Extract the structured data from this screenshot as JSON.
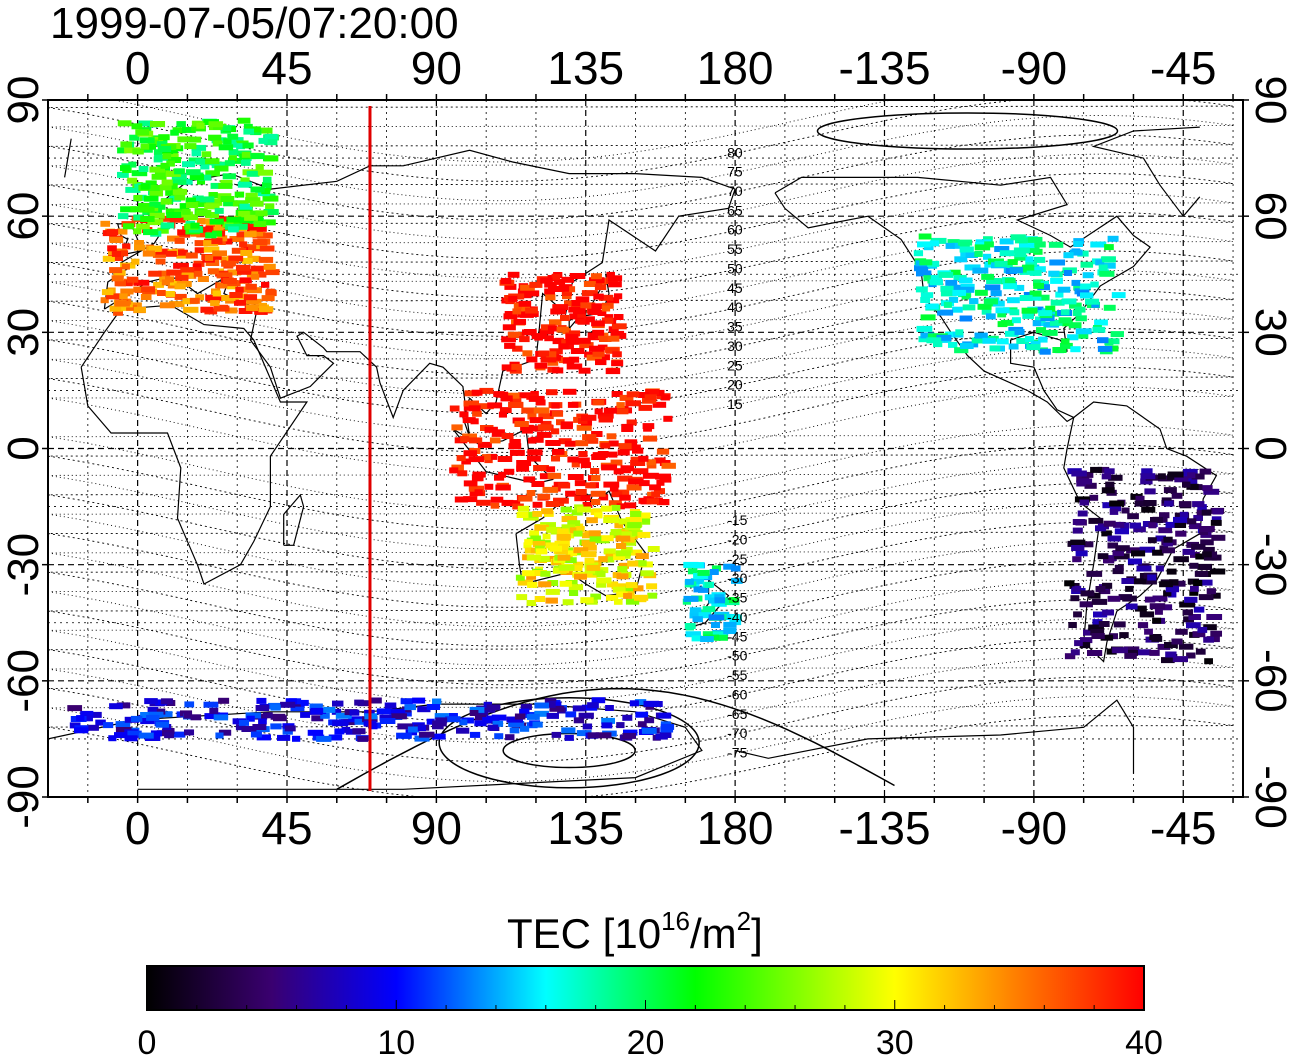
{
  "header": {
    "timestamp": "1999-07-05/07:20:00"
  },
  "map": {
    "top_axis_labels": [
      "0",
      "45",
      "90",
      "135",
      "180",
      "-135",
      "-90",
      "-45"
    ],
    "bottom_axis_labels": [
      "0",
      "45",
      "90",
      "135",
      "180",
      "-135",
      "-90",
      "-45"
    ],
    "left_axis_labels": [
      "90",
      "60",
      "30",
      "0",
      "-30",
      "-60",
      "-90"
    ],
    "right_axis_labels": [
      "90",
      "60",
      "30",
      "0",
      "-30",
      "-60",
      "-90"
    ],
    "contour_labels": [
      "80",
      "75",
      "70",
      "65",
      "60",
      "55",
      "50",
      "45",
      "40",
      "35",
      "30",
      "25",
      "20",
      "15",
      "-15",
      "-20",
      "-25",
      "-30",
      "-35",
      "-40",
      "-45",
      "-50",
      "-55",
      "-60",
      "-65",
      "-70",
      "-75"
    ],
    "marker_longitude": 70,
    "marker_color": "#e00000"
  },
  "colorbar": {
    "title_prefix": "TEC  [10",
    "title_sup1": "16",
    "title_mid": "/m",
    "title_sup2": "2",
    "title_suffix": "]",
    "tick_labels": [
      "0",
      "10",
      "20",
      "30",
      "40"
    ],
    "min": 0,
    "max": 40,
    "colors": [
      "#000000",
      "#3a0070",
      "#0000ff",
      "#00ffff",
      "#00ff00",
      "#ffff00",
      "#ff8000",
      "#ff0000"
    ]
  },
  "chart_data": {
    "type": "heatmap",
    "title": "1999-07-05/07:20:00",
    "colorbar_label": "TEC [10^16/m^2]",
    "crange": [
      0,
      40
    ],
    "regions": [
      {
        "lon": [
          -10,
          40
        ],
        "lat": [
          35,
          60
        ],
        "tec": 36
      },
      {
        "lon": [
          -5,
          40
        ],
        "lat": [
          55,
          85
        ],
        "tec": 22
      },
      {
        "lon": [
          110,
          145
        ],
        "lat": [
          20,
          45
        ],
        "tec": 40
      },
      {
        "lon": [
          95,
          160
        ],
        "lat": [
          -15,
          15
        ],
        "tec": 40
      },
      {
        "lon": [
          -125,
          -65
        ],
        "lat": [
          25,
          55
        ],
        "tec": 17
      },
      {
        "lon": [
          -80,
          -35
        ],
        "lat": [
          -55,
          -5
        ],
        "tec": 4
      },
      {
        "lon": [
          115,
          155
        ],
        "lat": [
          -40,
          -15
        ],
        "tec": 30
      },
      {
        "lon": [
          165,
          180
        ],
        "lat": [
          -50,
          -30
        ],
        "tec": 17
      },
      {
        "lon": [
          -20,
          160
        ],
        "lat": [
          -75,
          -65
        ],
        "tec": 9
      }
    ]
  }
}
